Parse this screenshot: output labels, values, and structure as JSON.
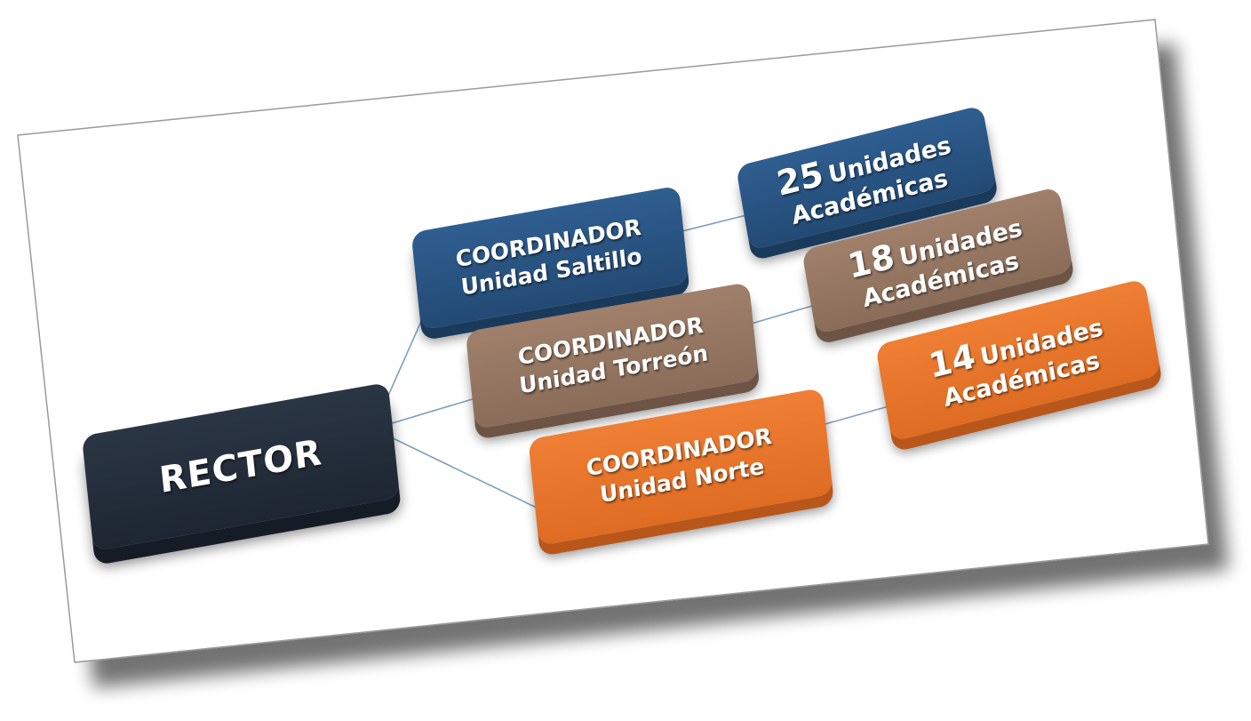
{
  "colors": {
    "rector": "#1f2833",
    "saltillo": "#2a5585",
    "torreon": "#957660",
    "norte": "#e8772d",
    "connector": "#7f9fbd"
  },
  "rector": {
    "label": "RECTOR"
  },
  "coordinators": [
    {
      "line1": "COORDINADOR",
      "line2": "Unidad Saltillo"
    },
    {
      "line1": "COORDINADOR",
      "line2": "Unidad Torreón"
    },
    {
      "line1": "COORDINADOR",
      "line2": "Unidad Norte"
    }
  ],
  "units": [
    {
      "number": "25",
      "word1": "Unidades",
      "word2": "Académicas"
    },
    {
      "number": "18",
      "word1": "Unidades",
      "word2": "Académicas"
    },
    {
      "number": "14",
      "word1": "Unidades",
      "word2": "Académicas"
    }
  ]
}
